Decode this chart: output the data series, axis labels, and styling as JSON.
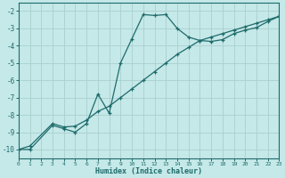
{
  "xlabel": "Humidex (Indice chaleur)",
  "bg_color": "#c5e8e8",
  "grid_color": "#aad0d0",
  "line_color": "#1d6b6b",
  "xlim": [
    0,
    23
  ],
  "ylim": [
    -10.5,
    -1.5
  ],
  "xticks": [
    0,
    1,
    2,
    3,
    4,
    5,
    6,
    7,
    8,
    9,
    10,
    11,
    12,
    13,
    14,
    15,
    16,
    17,
    18,
    19,
    20,
    21,
    22,
    23
  ],
  "yticks": [
    -10,
    -9,
    -8,
    -7,
    -6,
    -5,
    -4,
    -3,
    -2
  ],
  "curve1_x": [
    0,
    1,
    3,
    4,
    5,
    6,
    7,
    8,
    9,
    10,
    11,
    12,
    13,
    14,
    15,
    16,
    17,
    18,
    19,
    20,
    21,
    22,
    23
  ],
  "curve1_y": [
    -10,
    -10,
    -8.6,
    -8.8,
    -9.0,
    -8.5,
    -6.8,
    -7.9,
    -5.0,
    -3.6,
    -2.2,
    -2.25,
    -2.2,
    -3.0,
    -3.5,
    -3.7,
    -3.75,
    -3.65,
    -3.3,
    -3.1,
    -2.95,
    -2.6,
    -2.3
  ],
  "curve2_x": [
    0,
    1,
    3,
    4,
    5,
    6,
    7,
    8,
    9,
    10,
    11,
    12,
    13,
    14,
    15,
    16,
    17,
    18,
    19,
    20,
    21,
    22,
    23
  ],
  "curve2_y": [
    -10,
    -9.8,
    -8.5,
    -8.7,
    -8.65,
    -8.3,
    -7.8,
    -7.5,
    -7.0,
    -6.5,
    -6.0,
    -5.5,
    -5.0,
    -4.5,
    -4.1,
    -3.7,
    -3.5,
    -3.3,
    -3.1,
    -2.9,
    -2.7,
    -2.5,
    -2.3
  ]
}
